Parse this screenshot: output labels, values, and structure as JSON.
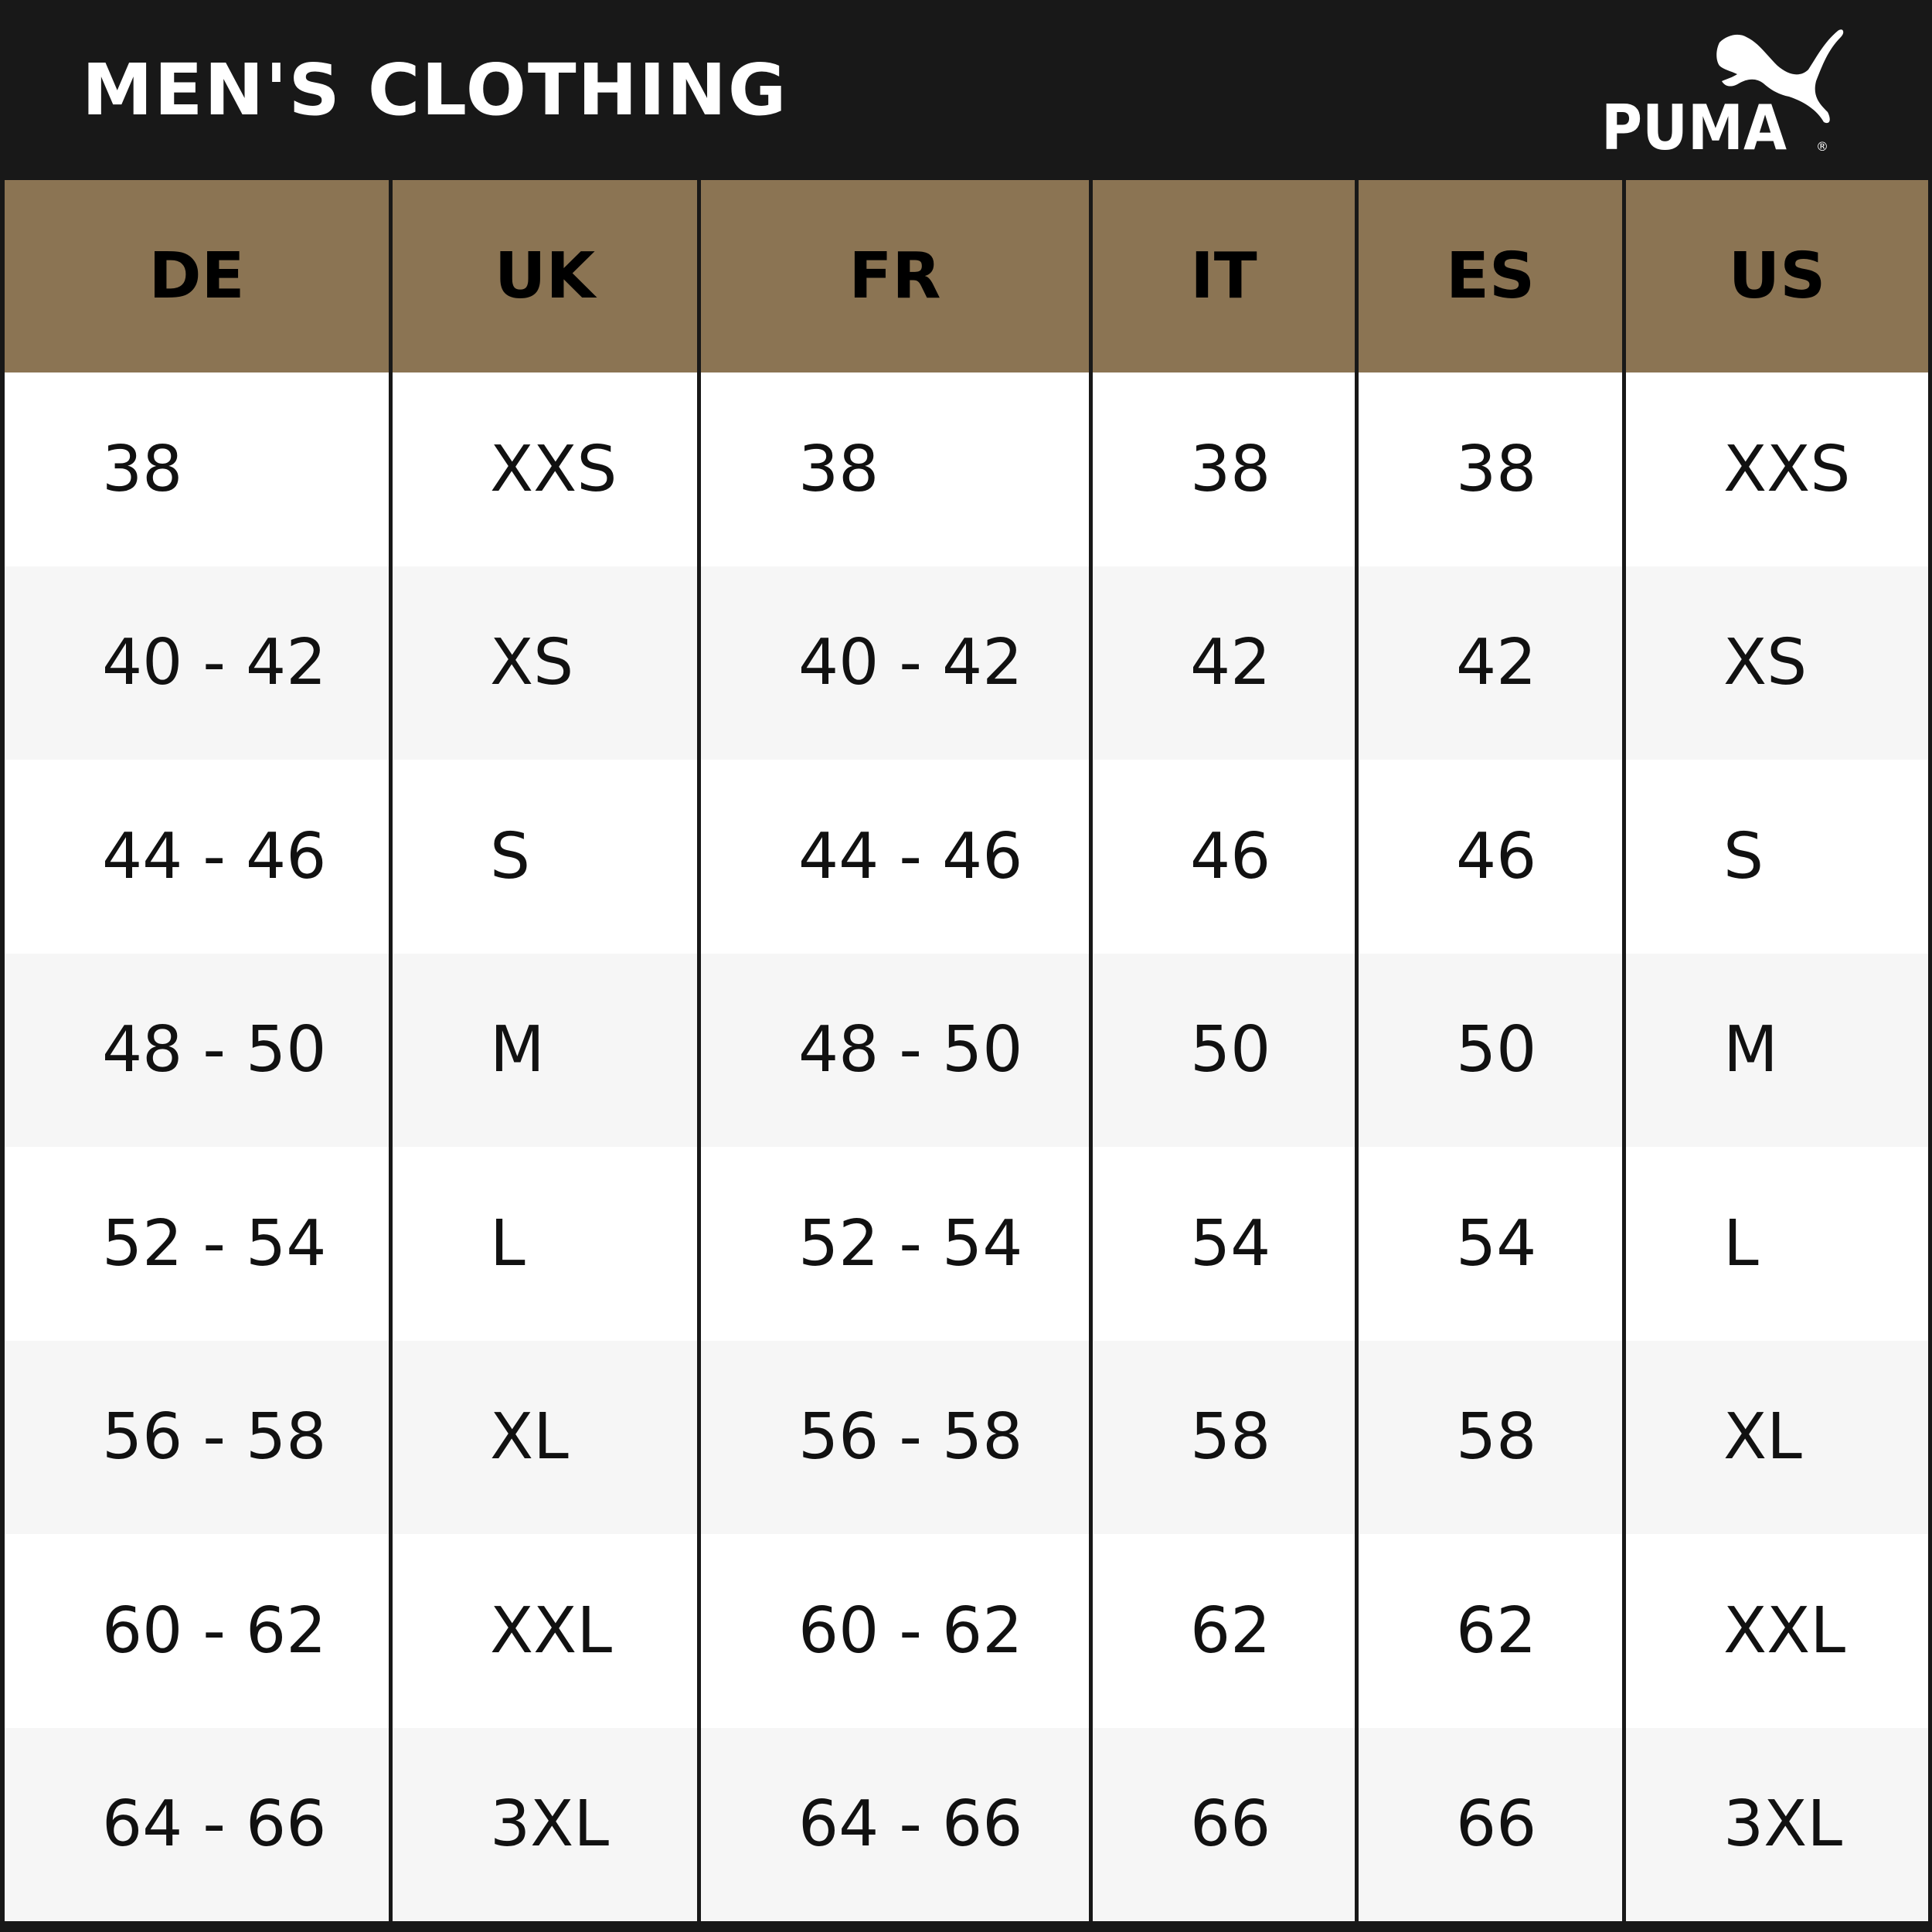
{
  "header": {
    "title": "MEN'S CLOTHING",
    "logo_text": "PUMA",
    "logo_icon": "puma-cat-logo"
  },
  "colors": {
    "header_bg": "#181818",
    "column_header_bg": "#8b7453",
    "row_alt_bg": "#f6f6f6"
  },
  "table": {
    "columns": [
      "DE",
      "UK",
      "FR",
      "IT",
      "ES",
      "US"
    ],
    "rows": [
      [
        "38",
        "XXS",
        "38",
        "38",
        "38",
        "XXS"
      ],
      [
        "40 - 42",
        "XS",
        "40 - 42",
        "42",
        "42",
        "XS"
      ],
      [
        "44 - 46",
        "S",
        "44 - 46",
        "46",
        "46",
        "S"
      ],
      [
        "48 - 50",
        "M",
        "48 - 50",
        "50",
        "50",
        "M"
      ],
      [
        "52 - 54",
        "L",
        "52 - 54",
        "54",
        "54",
        "L"
      ],
      [
        "56 - 58",
        "XL",
        "56 - 58",
        "58",
        "58",
        "XL"
      ],
      [
        "60 - 62",
        "XXL",
        "60 - 62",
        "62",
        "62",
        "XXL"
      ],
      [
        "64 - 66",
        "3XL",
        "64 - 66",
        "66",
        "66",
        "3XL"
      ]
    ]
  }
}
